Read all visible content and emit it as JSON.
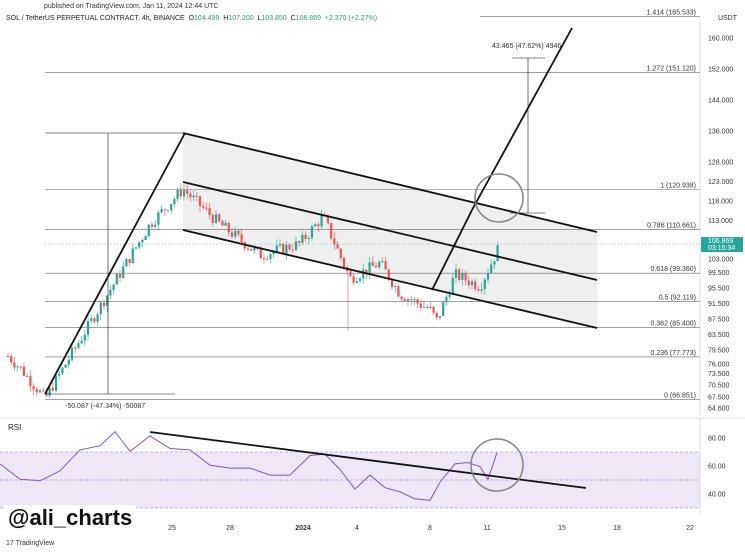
{
  "header": {
    "published": "published on TradingView.com, Jan 11, 2024 12:44 UTC",
    "symbol": "SOL / TetherUS PERPETUAL CONTRACT, 4h, BINANCE",
    "o_label": "O",
    "o_value": "104.499",
    "h_label": "H",
    "h_value": "107.200",
    "l_label": "L",
    "l_value": "103.850",
    "c_label": "C",
    "c_value": "106.869",
    "change": "+2.370 (+2.27%)",
    "unit": "USDT"
  },
  "price_badge": {
    "price": "106.869",
    "countdown": "03:15:34",
    "color": "#26a69a"
  },
  "chart_data": {
    "type": "candlestick",
    "title": "SOL / TetherUS PERPETUAL CONTRACT, 4h, BINANCE",
    "ylim": [
      64.5,
      164
    ],
    "yticks": [
      {
        "v": 160,
        "t": "160.000"
      },
      {
        "v": 152,
        "t": "152.000"
      },
      {
        "v": 144,
        "t": "144.000"
      },
      {
        "v": 136,
        "t": "136.000"
      },
      {
        "v": 128,
        "t": "128.000"
      },
      {
        "v": 123,
        "t": "123.000"
      },
      {
        "v": 118,
        "t": "118.000"
      },
      {
        "v": 113,
        "t": "113.000"
      },
      {
        "v": 103,
        "t": "103.000"
      },
      {
        "v": 99.5,
        "t": "99.500"
      },
      {
        "v": 95.5,
        "t": "95.500"
      },
      {
        "v": 91.5,
        "t": "91.500"
      },
      {
        "v": 87.5,
        "t": "87.500"
      },
      {
        "v": 83.5,
        "t": "83.500"
      },
      {
        "v": 79.5,
        "t": "79.500"
      },
      {
        "v": 76,
        "t": "76.000"
      },
      {
        "v": 73.5,
        "t": "73.500"
      },
      {
        "v": 70.5,
        "t": "70.500"
      },
      {
        "v": 67.5,
        "t": "67.500"
      },
      {
        "v": 64.6,
        "t": "64.600"
      }
    ],
    "xticks": [
      "25",
      "28",
      "2024",
      "4",
      "8",
      "11",
      "15",
      "18",
      "22"
    ],
    "fib_levels": [
      {
        "label": "1.414 (165.533)",
        "v": 165.533
      },
      {
        "label": "1.272 (151.120)",
        "v": 151.12
      },
      {
        "label": "1 (120.938)",
        "v": 120.938
      },
      {
        "label": "0.786 (110.661)",
        "v": 110.661
      },
      {
        "label": "0.618 (99.360)",
        "v": 99.36
      },
      {
        "label": "0.5 (92.119)",
        "v": 92.119
      },
      {
        "label": "0.382 (85.400)",
        "v": 85.4
      },
      {
        "label": "0.236 (77.773)",
        "v": 77.773
      },
      {
        "label": "0 (66.851)",
        "v": 66.851
      }
    ],
    "annotations": {
      "target_move": "43.465 (47.62%) 4946",
      "prior_move": "-50.087 (-47.34%) -50087"
    },
    "colors": {
      "up": "#26a69a",
      "down": "#ef5350",
      "rsi": "#7e57c2",
      "channel": "#e8e8e8"
    },
    "rsi": {
      "label": "RSI",
      "ylim": [
        30,
        90
      ],
      "yticks": [
        {
          "v": 80,
          "t": "80.00"
        },
        {
          "v": 60,
          "t": "60.00"
        },
        {
          "v": 40,
          "t": "40.00"
        }
      ],
      "band": [
        70,
        30
      ]
    },
    "legend": "none",
    "grid": false
  },
  "branding": {
    "handle": "@ali_charts",
    "footer": "TradingView"
  }
}
